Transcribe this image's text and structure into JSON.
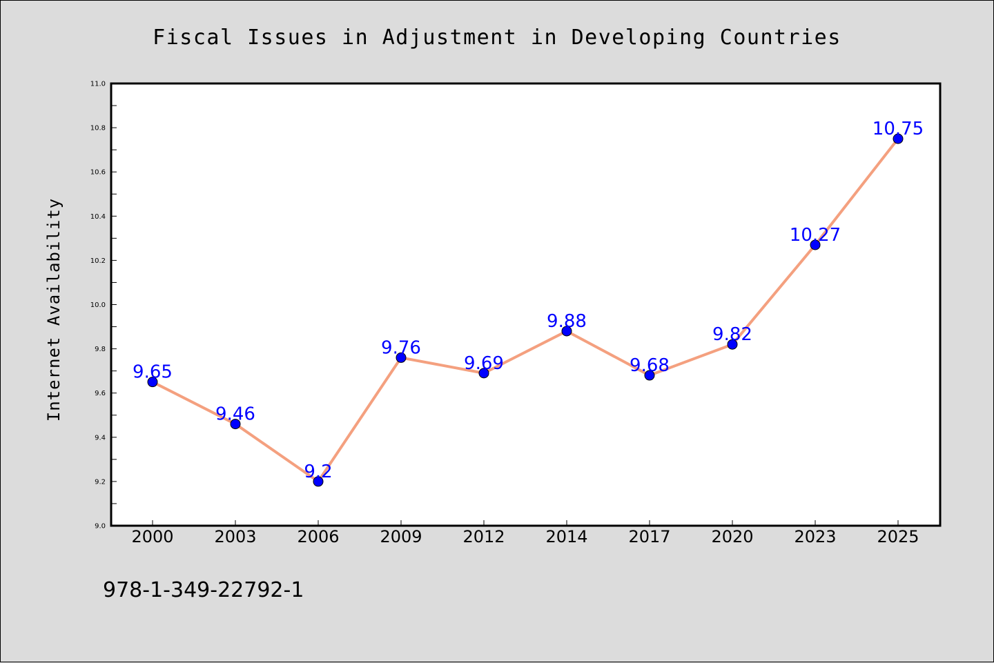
{
  "colors": {
    "background": "#dcdcdc",
    "plot_background": "#ffffff",
    "line": "#f4a07f",
    "marker": "#0000ff",
    "data_label": "#0000ff"
  },
  "isbn": "978-1-349-22792-1",
  "chart_data": {
    "type": "line",
    "title": "Fiscal Issues in Adjustment in Developing Countries",
    "xlabel": "",
    "ylabel": "Internet Availability",
    "categories": [
      "2000",
      "2003",
      "2006",
      "2009",
      "2012",
      "2014",
      "2017",
      "2020",
      "2023",
      "2025"
    ],
    "series": [
      {
        "values": [
          9.65,
          9.46,
          9.2,
          9.76,
          9.69,
          9.88,
          9.68,
          9.82,
          10.27,
          10.75
        ]
      }
    ],
    "data_labels": [
      "9.65",
      "9.46",
      "9.2",
      "9.76",
      "9.69",
      "9.88",
      "9.68",
      "9.82",
      "10.27",
      "10.75"
    ],
    "ylim": [
      9.0,
      11.0
    ],
    "yticks": [
      "9.0",
      "9.2",
      "9.4",
      "9.6",
      "9.8",
      "10.0",
      "10.2",
      "10.4",
      "10.6",
      "10.8",
      "11.0"
    ],
    "grid": false,
    "legend": "none"
  }
}
